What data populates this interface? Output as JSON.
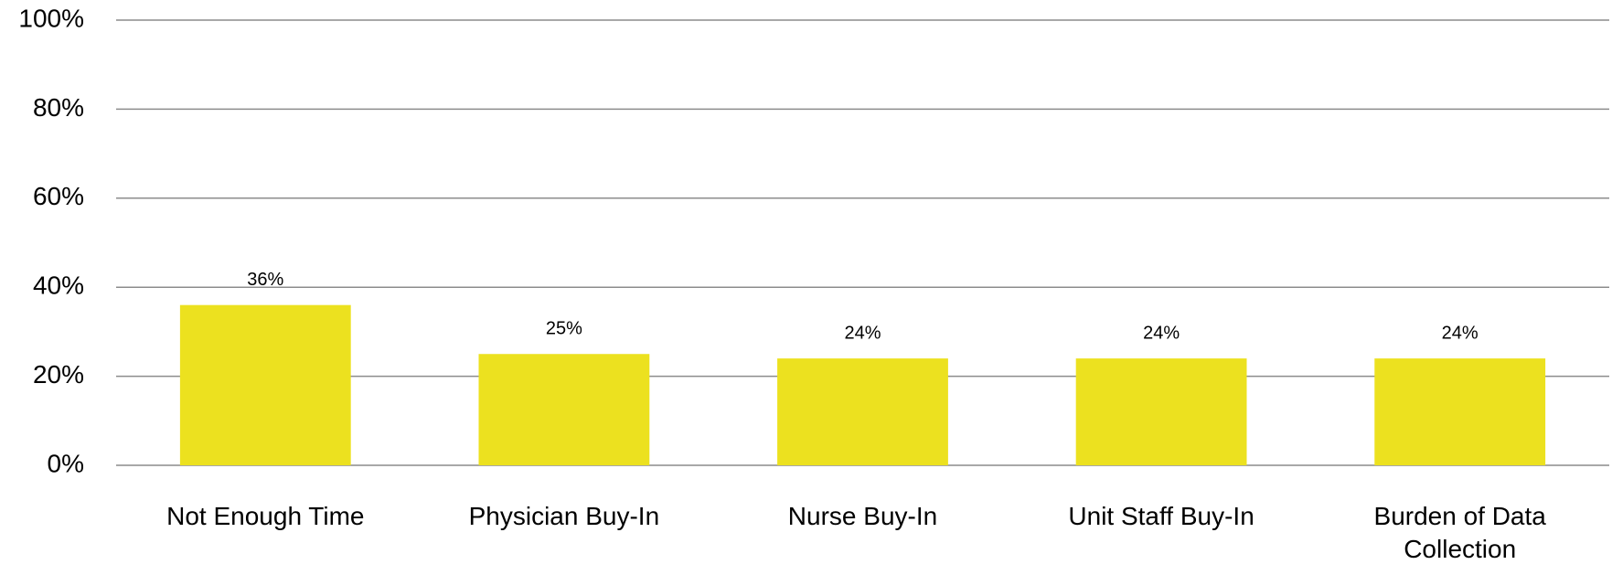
{
  "chart_data": {
    "type": "bar",
    "categories": [
      "Not Enough Time",
      "Physician Buy-In",
      "Nurse Buy-In",
      "Unit Staff Buy-In",
      "Burden of Data Collection"
    ],
    "values": [
      36,
      25,
      24,
      24,
      24
    ],
    "value_labels": [
      "36%",
      "25%",
      "24%",
      "24%",
      "24%"
    ],
    "color": "#ece11f",
    "ylim": [
      0,
      100
    ],
    "yticks": [
      {
        "value": 0,
        "label": "0%"
      },
      {
        "value": 20,
        "label": "20%"
      },
      {
        "value": 40,
        "label": "40%"
      },
      {
        "value": 60,
        "label": "60%"
      },
      {
        "value": 80,
        "label": "80%"
      },
      {
        "value": 100,
        "label": "100%"
      }
    ],
    "grid": true
  }
}
